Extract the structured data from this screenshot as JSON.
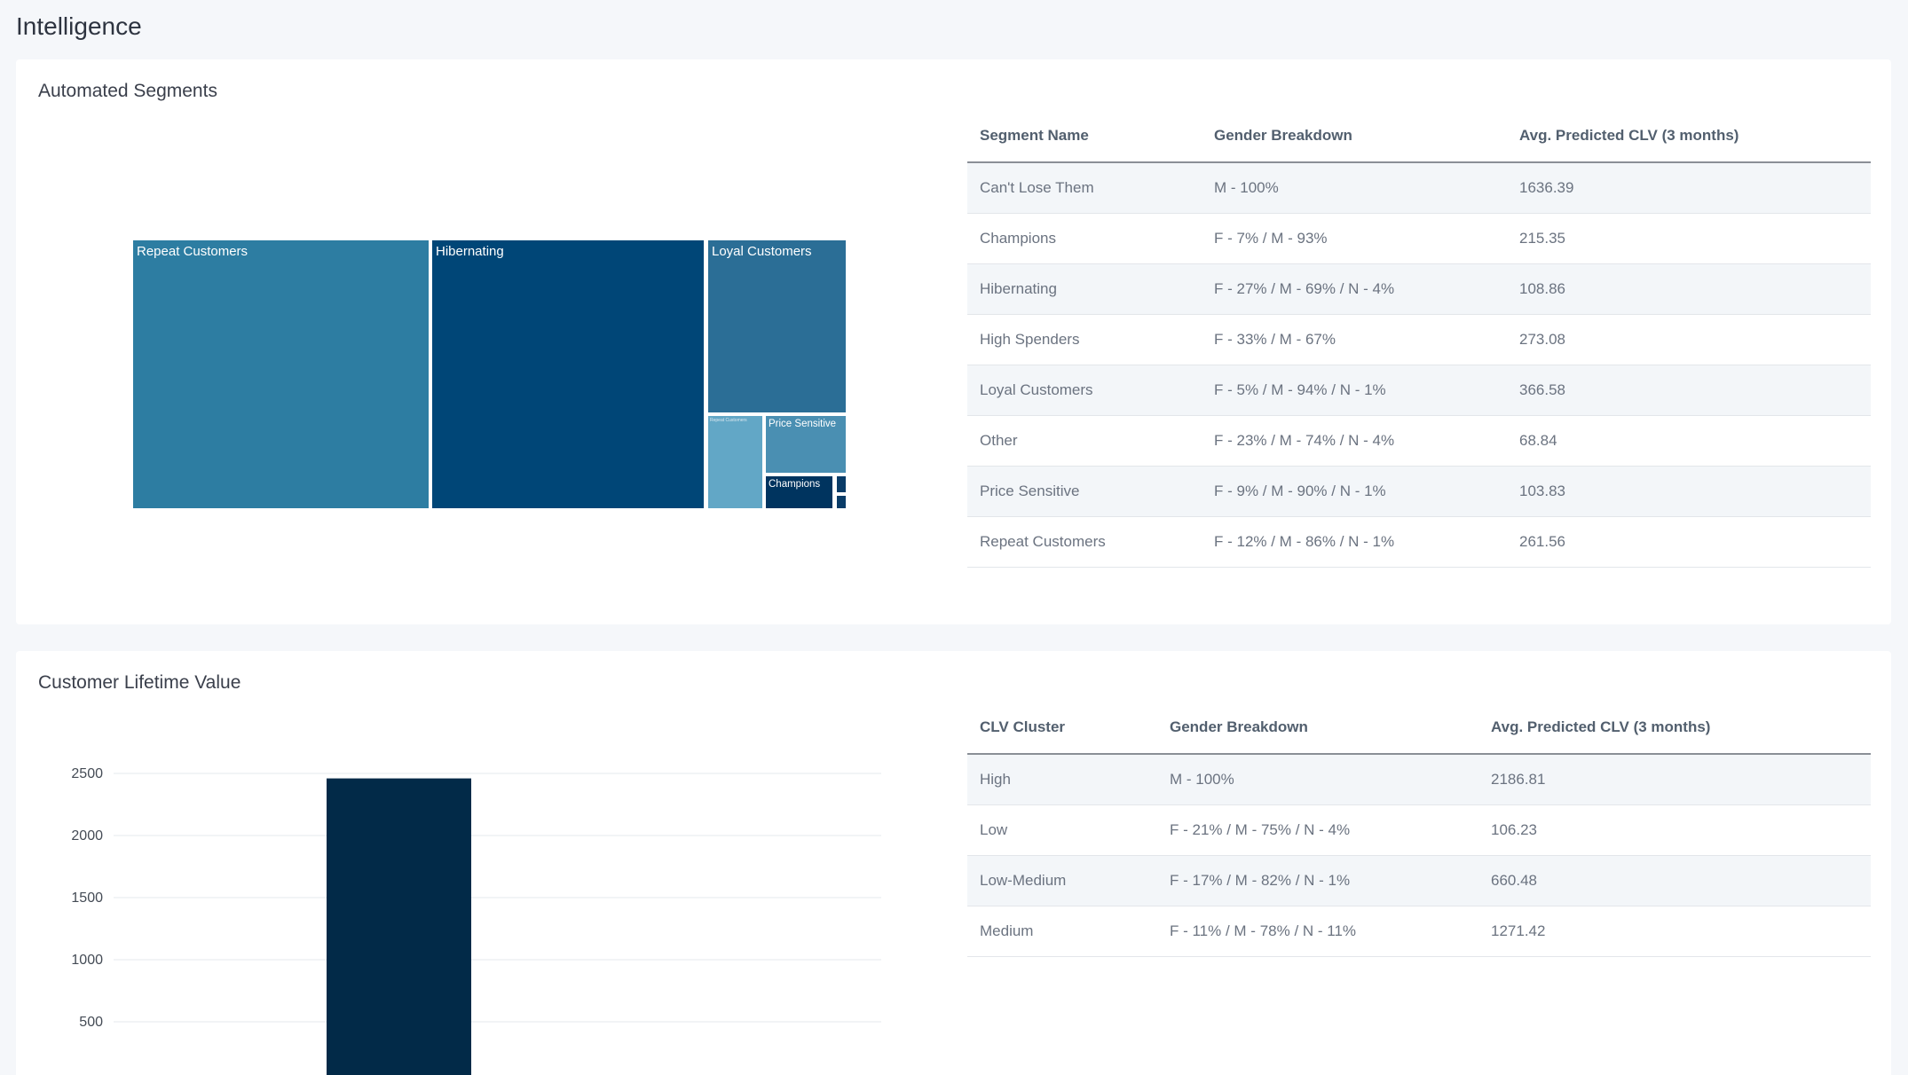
{
  "page_title": "Intelligence",
  "segments_card": {
    "title": "Automated Segments",
    "treemap": {
      "tiles": [
        {
          "label": "Repeat Customers",
          "color": "#2d7da2"
        },
        {
          "label": "Hibernating",
          "color": "#004677"
        },
        {
          "label": "Loyal Customers",
          "color": "#2b6e96"
        },
        {
          "label": "Repeat Customers",
          "color": "#62a7c6"
        },
        {
          "label": "Price Sensitive",
          "color": "#4a8fb2"
        },
        {
          "label": "Champions",
          "color": "#00345f"
        },
        {
          "label": "",
          "color": "#0a3c68"
        },
        {
          "label": "",
          "color": "#0a3c68"
        }
      ]
    },
    "table": {
      "headers": [
        "Segment Name",
        "Gender Breakdown",
        "Avg. Predicted CLV (3 months)"
      ],
      "rows": [
        [
          "Can't Lose Them",
          "M - 100%",
          "1636.39"
        ],
        [
          "Champions",
          "F - 7% / M - 93%",
          "215.35"
        ],
        [
          "Hibernating",
          "F - 27% / M - 69% / N - 4%",
          "108.86"
        ],
        [
          "High Spenders",
          "F - 33% / M - 67%",
          "273.08"
        ],
        [
          "Loyal Customers",
          "F - 5% / M - 94% / N - 1%",
          "366.58"
        ],
        [
          "Other",
          "F - 23% / M - 74% / N - 4%",
          "68.84"
        ],
        [
          "Price Sensitive",
          "F - 9% / M - 90% / N - 1%",
          "103.83"
        ],
        [
          "Repeat Customers",
          "F - 12% / M - 86% / N - 1%",
          "261.56"
        ]
      ]
    }
  },
  "clv_card": {
    "title": "Customer Lifetime Value",
    "table": {
      "headers": [
        "CLV Cluster",
        "Gender Breakdown",
        "Avg. Predicted CLV (3 months)"
      ],
      "rows": [
        [
          "High",
          "M - 100%",
          "2186.81"
        ],
        [
          "Low",
          "F - 21% / M - 75% / N - 4%",
          "106.23"
        ],
        [
          "Low-Medium",
          "F - 17% / M - 82% / N - 1%",
          "660.48"
        ],
        [
          "Medium",
          "F - 11% / M - 78% / N - 11%",
          "1271.42"
        ]
      ]
    }
  },
  "chart_data": {
    "type": "bar",
    "categories": [
      ""
    ],
    "values": [
      2460
    ],
    "yticks": [
      500,
      1000,
      1500,
      2000,
      2500
    ],
    "ylim": [
      0,
      2650
    ],
    "bar_color": "#022a48",
    "grid": true,
    "title": "",
    "xlabel": "",
    "ylabel": ""
  }
}
